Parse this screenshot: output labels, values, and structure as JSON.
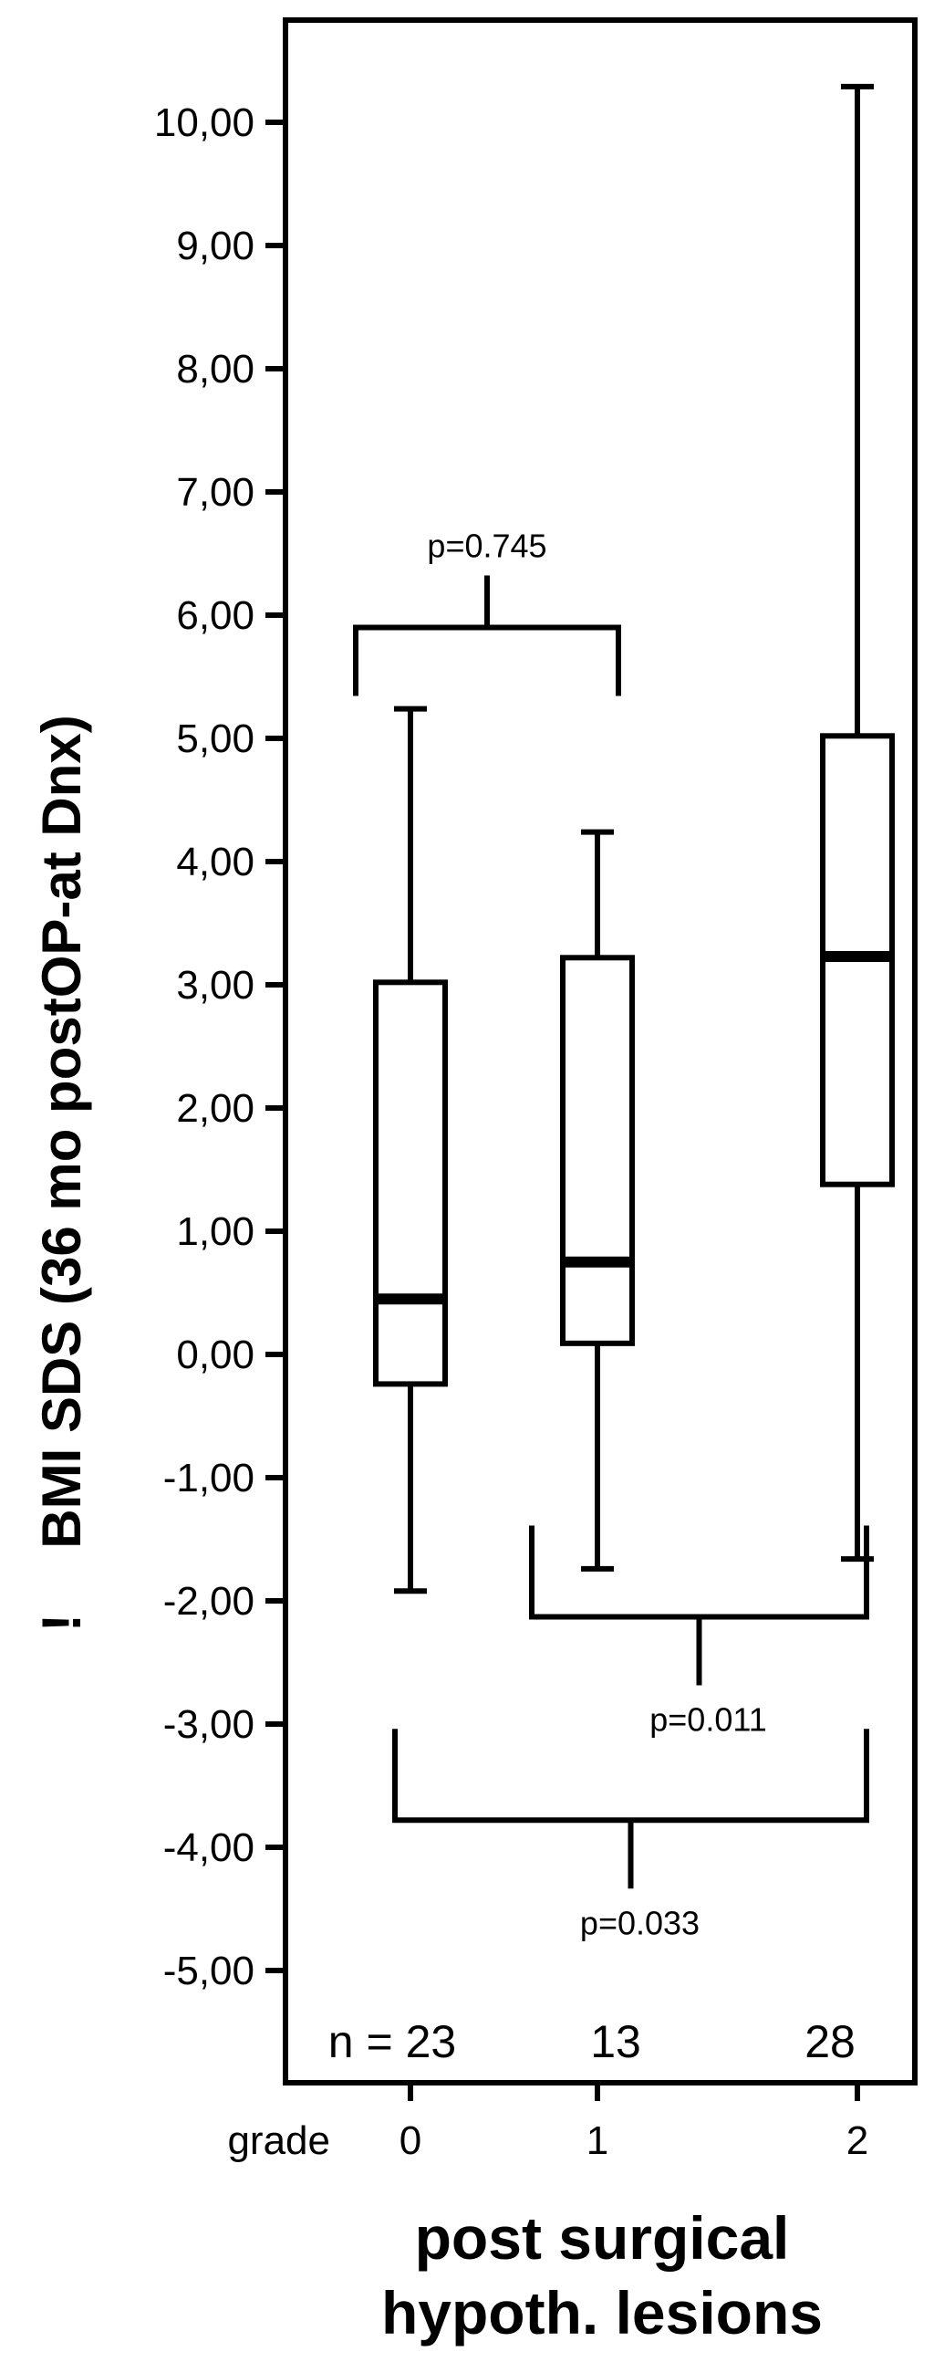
{
  "chart_data": {
    "type": "box",
    "ylabel": "BMI SDS (36 mo postOP-at Dnx)",
    "ylabel_marker": "!",
    "xlabel_line1": "post surgical",
    "xlabel_line2": "hypoth. lesions",
    "x_prefix": "grade",
    "ylim": [
      -5.6,
      11.5
    ],
    "yticks": [
      10,
      9,
      8,
      7,
      6,
      5,
      4,
      3,
      2,
      1,
      0,
      -1,
      -2,
      -3,
      -4,
      -5
    ],
    "ytick_labels": [
      "10,00",
      "9,00",
      "8,00",
      "7,00",
      "6,00",
      "5,00",
      "4,00",
      "3,00",
      "2,00",
      "1,00",
      "0,00",
      "-1,00",
      "-2,00",
      "-3,00",
      "-4,00",
      "-5,00"
    ],
    "categories": [
      "0",
      "1",
      "2"
    ],
    "n_prefix": "n = ",
    "n": [
      "23",
      "13",
      "28"
    ],
    "boxes": [
      {
        "category": "0",
        "min": -1.92,
        "q1": -0.24,
        "median": 0.45,
        "q3": 3.02,
        "max": 5.24
      },
      {
        "category": "1",
        "min": -1.74,
        "q1": 0.09,
        "median": 0.75,
        "q3": 3.22,
        "max": 4.24
      },
      {
        "category": "2",
        "min": -1.66,
        "q1": 1.38,
        "median": 3.23,
        "q3": 5.02,
        "max": 10.29
      }
    ],
    "comparisons": [
      {
        "from": 0,
        "to": 1,
        "p": "p=0.745",
        "position": "above",
        "level": 5.9
      },
      {
        "from": 1,
        "to": 2,
        "p": "p=0.011",
        "position": "below",
        "level": -2.13
      },
      {
        "from": 0,
        "to": 2,
        "p": "p=0.033",
        "position": "below",
        "level": -3.78
      }
    ]
  }
}
